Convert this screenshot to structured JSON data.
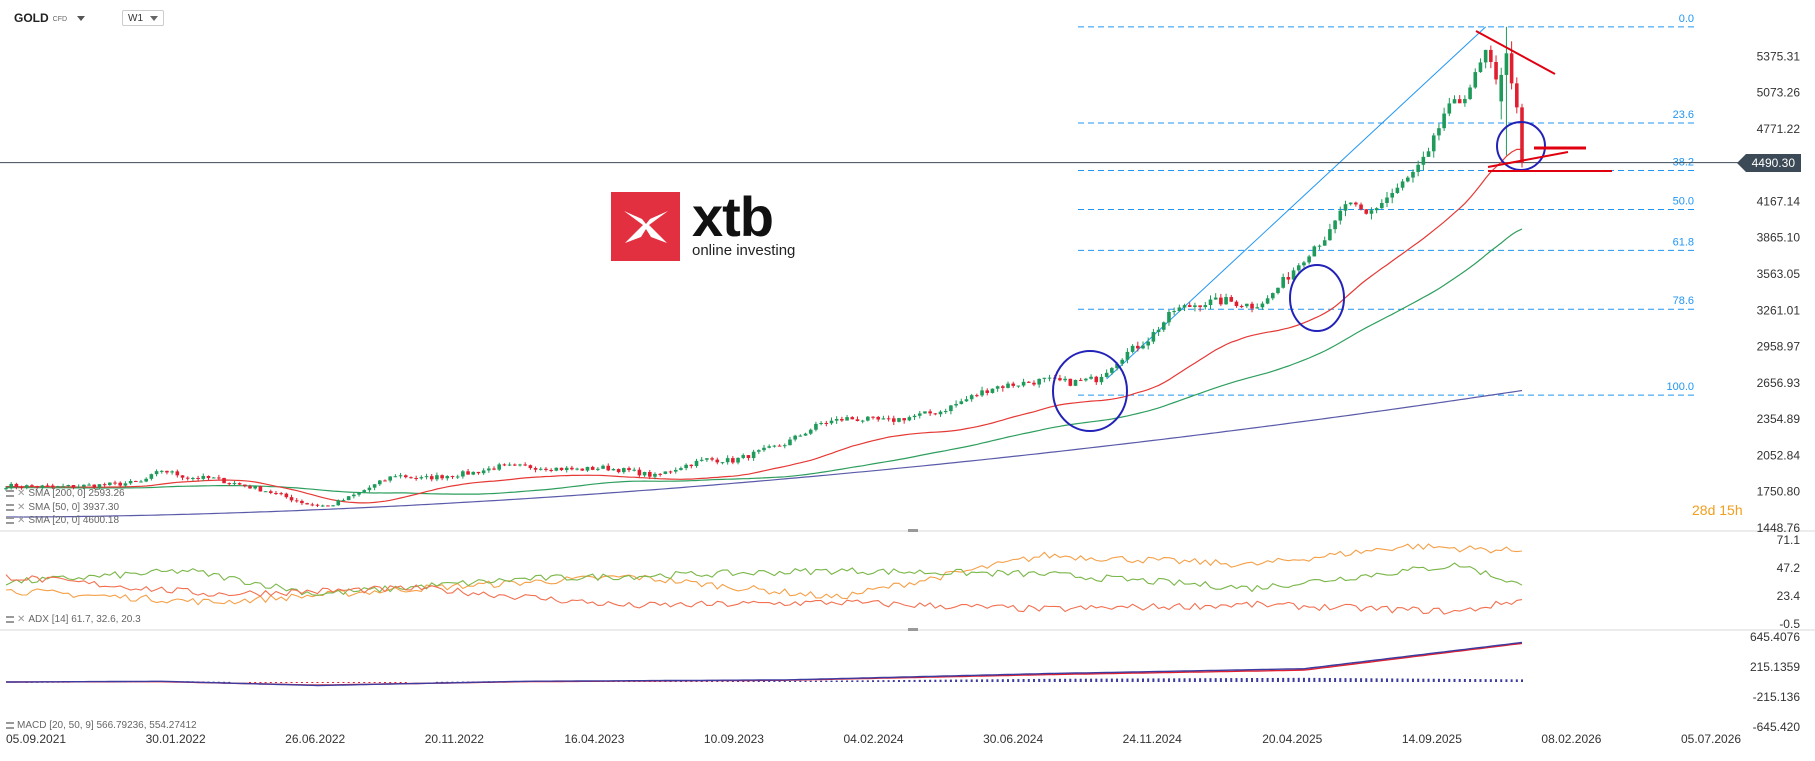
{
  "header": {
    "symbol": "GOLD",
    "symbol_sub": "CFD",
    "timeframe": "W1"
  },
  "logo": {
    "word": "xtb",
    "tagline": "online investing"
  },
  "current_price": "4490.30",
  "countdown": {
    "days": "28",
    "days_unit": "d",
    "hours": "15",
    "hours_unit": "h"
  },
  "legend": {
    "sma200": "SMA [200, 0] 2593.26",
    "sma50": "SMA [50, 0] 3937.30",
    "sma20": "SMA [20, 0] 4600.18",
    "adx": "ADX [14] 61.7, 32.6, 20.3",
    "macd": "MACD [20, 50, 9] 566.79236, 554.27412"
  },
  "colors": {
    "up": "#1e9a5a",
    "down": "#e02030",
    "sma20": "#e53935",
    "sma50": "#2e9e5e",
    "sma200": "#5a5aaa",
    "fib": "#2196f3",
    "annot_red": "#e00010",
    "annot_blue": "#2222b8",
    "adx_orange": "#f5a048",
    "adx_green": "#7ab648",
    "adx_red": "#f27050",
    "macd_line": "#3c3ca0",
    "macd_signal": "#e02030"
  },
  "chart_data": [
    {
      "type": "candlestick",
      "title": "GOLD CFD W1",
      "x_ticks": [
        "05.09.2021",
        "30.01.2022",
        "26.06.2022",
        "20.11.2022",
        "16.04.2023",
        "10.09.2023",
        "04.02.2024",
        "30.06.2024",
        "24.11.2024",
        "20.04.2025",
        "14.09.2025",
        "08.02.2026",
        "05.07.2026"
      ],
      "y_ticks": [
        "5375.31",
        "5073.26",
        "4771.22",
        "4490.30",
        "4167.14",
        "3865.10",
        "3563.05",
        "3261.01",
        "2958.97",
        "2656.93",
        "2354.89",
        "2052.84",
        "1750.80",
        "1448.76"
      ],
      "ylim": [
        1448.76,
        5677.35
      ],
      "price_anchors": [
        [
          0,
          1800
        ],
        [
          10,
          1790
        ],
        [
          20,
          1810
        ],
        [
          26,
          1830
        ],
        [
          30,
          1930
        ],
        [
          35,
          1870
        ],
        [
          40,
          1860
        ],
        [
          50,
          1760
        ],
        [
          58,
          1650
        ],
        [
          62,
          1630
        ],
        [
          66,
          1700
        ],
        [
          75,
          1890
        ],
        [
          80,
          1860
        ],
        [
          90,
          1910
        ],
        [
          95,
          1960
        ],
        [
          100,
          1960
        ],
        [
          110,
          1935
        ],
        [
          115,
          1950
        ],
        [
          120,
          1925
        ],
        [
          125,
          1880
        ],
        [
          130,
          1960
        ],
        [
          135,
          2020
        ],
        [
          140,
          2010
        ],
        [
          150,
          2150
        ],
        [
          157,
          2320
        ],
        [
          162,
          2360
        ],
        [
          170,
          2340
        ],
        [
          175,
          2380
        ],
        [
          180,
          2420
        ],
        [
          190,
          2620
        ],
        [
          200,
          2680
        ],
        [
          205,
          2660
        ],
        [
          210,
          2690
        ],
        [
          215,
          2880
        ],
        [
          220,
          3020
        ],
        [
          225,
          3260
        ],
        [
          230,
          3320
        ],
        [
          235,
          3340
        ],
        [
          240,
          3300
        ],
        [
          243,
          3350
        ],
        [
          248,
          3600
        ],
        [
          252,
          3800
        ],
        [
          255,
          3900
        ],
        [
          258,
          4150
        ],
        [
          262,
          4050
        ],
        [
          266,
          4200
        ],
        [
          270,
          4350
        ],
        [
          274,
          4550
        ],
        [
          277,
          4900
        ],
        [
          280,
          5000
        ],
        [
          283,
          5200
        ],
        [
          285,
          5400
        ],
        [
          287,
          5150
        ],
        [
          290,
          4600
        ],
        [
          292,
          4490
        ]
      ],
      "ohlc_recent": [
        {
          "open": 5000,
          "high": 5280,
          "low": 4850,
          "close": 5220
        },
        {
          "open": 5220,
          "high": 5620,
          "low": 4550,
          "close": 5400
        },
        {
          "open": 5400,
          "high": 5500,
          "low": 5100,
          "close": 5150
        },
        {
          "open": 5150,
          "high": 5200,
          "low": 4900,
          "close": 4950
        },
        {
          "open": 4950,
          "high": 4980,
          "low": 4450,
          "close": 4490
        }
      ],
      "sma20_last": 4600.18,
      "sma50_last": 3937.3,
      "sma200_last": 2593.26,
      "fibonacci": [
        {
          "level": "0.0",
          "price": 5620
        },
        {
          "level": "23.6",
          "price": 4820
        },
        {
          "level": "38.2",
          "price": 4425
        },
        {
          "level": "50.0",
          "price": 4100
        },
        {
          "level": "61.8",
          "price": 3760
        },
        {
          "level": "78.6",
          "price": 3270
        },
        {
          "level": "100.0",
          "price": 2555
        }
      ]
    },
    {
      "type": "line",
      "title": "ADX [14]",
      "y_ticks": [
        "71.1",
        "47.2",
        "23.4",
        "-0.5"
      ],
      "ylim": [
        -0.5,
        71.1
      ],
      "series": [
        {
          "name": "ADX",
          "last": 61.7,
          "anchors": [
            [
              0,
              28
            ],
            [
              40,
              18
            ],
            [
              80,
              30
            ],
            [
              120,
              40
            ],
            [
              160,
              22
            ],
            [
              200,
              58
            ],
            [
              240,
              50
            ],
            [
              270,
              66
            ],
            [
              292,
              61.7
            ]
          ]
        },
        {
          "name": "+DI",
          "last": 32.6,
          "anchors": [
            [
              0,
              35
            ],
            [
              35,
              45
            ],
            [
              60,
              25
            ],
            [
              100,
              38
            ],
            [
              160,
              45
            ],
            [
              200,
              42
            ],
            [
              240,
              30
            ],
            [
              280,
              50
            ],
            [
              292,
              32.6
            ]
          ]
        },
        {
          "name": "-DI",
          "last": 20.3,
          "anchors": [
            [
              0,
              40
            ],
            [
              40,
              25
            ],
            [
              80,
              30
            ],
            [
              120,
              15
            ],
            [
              160,
              18
            ],
            [
              200,
              12
            ],
            [
              240,
              16
            ],
            [
              280,
              10
            ],
            [
              292,
              20.3
            ]
          ]
        }
      ]
    },
    {
      "type": "line",
      "title": "MACD [20, 50, 9]",
      "y_ticks": [
        "645.4076",
        "215.1359",
        "-215.136",
        "-645.420"
      ],
      "ylim": [
        -645.42,
        645.4076
      ],
      "series": [
        {
          "name": "MACD",
          "last": 566.79236,
          "anchors": [
            [
              0,
              0
            ],
            [
              30,
              10
            ],
            [
              55,
              -40
            ],
            [
              60,
              -50
            ],
            [
              100,
              10
            ],
            [
              150,
              30
            ],
            [
              200,
              120
            ],
            [
              250,
              190
            ],
            [
              292,
              566.8
            ]
          ]
        },
        {
          "name": "Signal",
          "last": 554.27412,
          "anchors": [
            [
              0,
              0
            ],
            [
              30,
              5
            ],
            [
              60,
              -45
            ],
            [
              100,
              5
            ],
            [
              150,
              25
            ],
            [
              200,
              105
            ],
            [
              250,
              170
            ],
            [
              292,
              554.3
            ]
          ]
        }
      ]
    }
  ]
}
